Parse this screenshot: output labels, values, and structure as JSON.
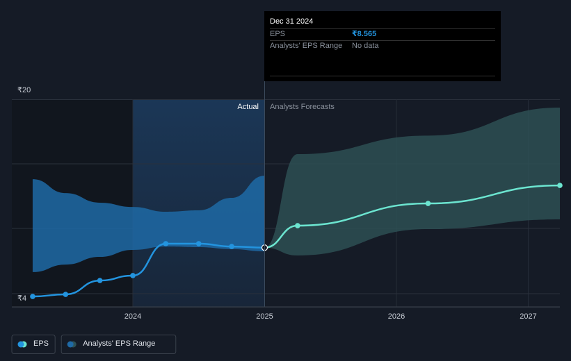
{
  "chart_data": {
    "type": "line",
    "x": [
      2023.24,
      2023.49,
      2023.75,
      2024.0,
      2024.25,
      2024.5,
      2024.75,
      2025.0,
      2025.25,
      2026.24,
      2027.24
    ],
    "series": [
      {
        "name": "EPS",
        "color": "#2394df",
        "forecast_color": "#6ce5d0",
        "values": [
          4.8,
          4.96,
          6.03,
          6.41,
          8.87,
          8.87,
          8.65,
          8.565,
          10.26,
          11.97,
          13.36
        ],
        "value_labels": [
          null,
          null,
          null,
          null,
          null,
          null,
          null,
          "₹8.565",
          null,
          null,
          null
        ]
      },
      {
        "name": "Analysts' EPS Range",
        "color": "#1f6aa6",
        "forecast_color": "#2e5256",
        "low": [
          6.68,
          7.26,
          7.85,
          8.39,
          8.65,
          8.6,
          8.45,
          8.28,
          7.96,
          9.99,
          10.74
        ],
        "high": [
          13.84,
          12.77,
          12.03,
          11.7,
          11.33,
          11.44,
          12.4,
          14.11,
          15.77,
          17.2,
          19.36
        ]
      }
    ],
    "forecast_from": 2025.0,
    "annotations": {
      "actual": "Actual",
      "forecast": "Analysts Forecasts"
    },
    "tooltip": {
      "date": "Dec 31 2024",
      "eps_label": "EPS",
      "range_label": "Analysts' EPS Range",
      "range_value": "No data"
    },
    "xlim": [
      2023.082,
      2027.24
    ],
    "xticks": [
      2024,
      2025,
      2026,
      2027
    ],
    "ylim": [
      4,
      20
    ],
    "yticks": [
      {
        "value": 4,
        "label": "₹4"
      },
      {
        "value": 20,
        "label": "₹20"
      }
    ],
    "grid": true
  }
}
